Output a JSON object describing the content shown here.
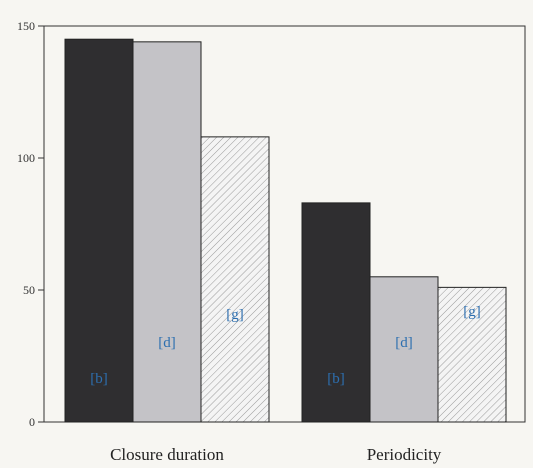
{
  "chart_data": {
    "type": "bar",
    "title": "",
    "xlabel": "",
    "ylabel": "",
    "categories": [
      "Closure duration",
      "Periodicity"
    ],
    "series": [
      {
        "name": "",
        "bar_labels": [
          "[b]",
          "[b]"
        ],
        "values": [
          145,
          83
        ],
        "fill": "#2f2e30",
        "pattern": "solid"
      },
      {
        "name": "",
        "bar_labels": [
          "[d]",
          "[d]"
        ],
        "values": [
          144,
          55
        ],
        "fill": "#c4c3c7",
        "pattern": "solid"
      },
      {
        "name": "",
        "bar_labels": [
          "[g]",
          "[g]"
        ],
        "values": [
          108,
          51
        ],
        "fill": "#f4f4f4",
        "pattern": "hatched"
      }
    ],
    "ylim": [
      0,
      150
    ],
    "yticks": [
      0,
      50,
      100,
      150
    ],
    "grid": false,
    "colors": {
      "axis": "#333333",
      "bar_label": "#2d6fb0",
      "hatch": "#9a9a9a",
      "background": "#f7f6f2"
    }
  }
}
